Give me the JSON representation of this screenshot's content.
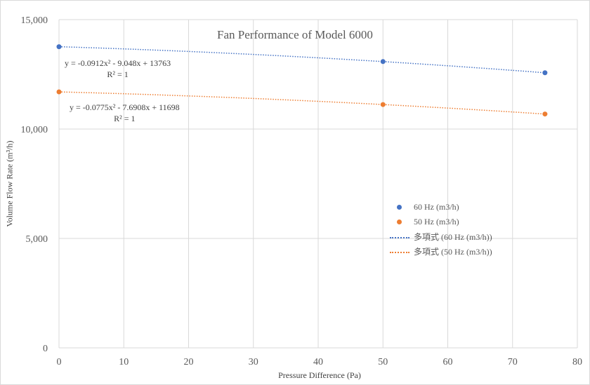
{
  "chart_data": {
    "type": "scatter",
    "title": "Fan Performance of Model 6000",
    "xlabel": "Pressure Difference (Pa)",
    "ylabel": "Volume Flow Rate (m³/h)",
    "xlim": [
      0,
      80
    ],
    "ylim": [
      0,
      15000
    ],
    "x_ticks": [
      "0",
      "10",
      "20",
      "30",
      "40",
      "50",
      "60",
      "70",
      "80"
    ],
    "y_ticks": [
      "0",
      "5,000",
      "10,000",
      "15,000"
    ],
    "grid": true,
    "legend_position": "right",
    "series": [
      {
        "name": "60 Hz (m3/h)",
        "color": "#4472c4",
        "x": [
          0,
          50,
          75
        ],
        "y": [
          13763,
          13083,
          12573
        ],
        "trendline": {
          "name": "多項式 (60 Hz (m3/h))",
          "coef": [
            -0.0912,
            -9.048,
            13763
          ],
          "equation": "y = -0.0912x² - 9.048x + 13763",
          "r2": "R² = 1"
        }
      },
      {
        "name": "50 Hz (m3/h)",
        "color": "#ed7d31",
        "x": [
          0,
          50,
          75
        ],
        "y": [
          11698,
          11119,
          10687
        ],
        "trendline": {
          "name": "多項式 (50 Hz (m3/h))",
          "coef": [
            -0.0775,
            -7.6908,
            11698
          ],
          "equation": "y = -0.0775x² - 7.6908x + 11698",
          "r2": "R² = 1"
        }
      }
    ]
  }
}
